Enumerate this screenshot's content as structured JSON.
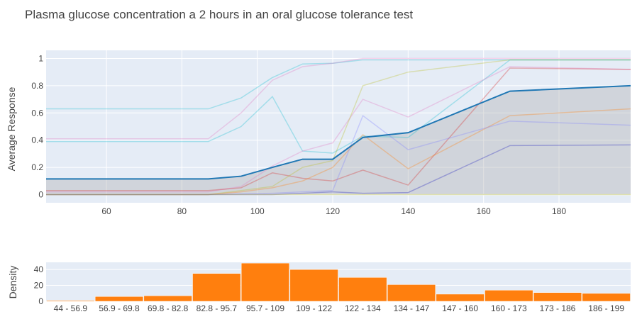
{
  "title": "Plasma glucose concentration a 2 hours in an oral glucose tolerance test",
  "chart_data": [
    {
      "type": "line",
      "ylabel": "Average Response",
      "xlim": [
        44,
        199
      ],
      "ylim": [
        -0.06,
        1.06
      ],
      "x_ticks": [
        60,
        80,
        100,
        120,
        140,
        160,
        180
      ],
      "y_ticks": [
        0,
        0.2,
        0.4,
        0.6,
        0.8,
        1
      ],
      "grid": true,
      "background": "#e5ecf6",
      "x": [
        44,
        56.9,
        69.8,
        82.8,
        87,
        95.7,
        104,
        112,
        120,
        128,
        140,
        167,
        199
      ],
      "band": {
        "color": "#a9a9a9",
        "upper": [
          0.115,
          0.115,
          0.115,
          0.115,
          0.115,
          0.135,
          0.2,
          0.26,
          0.26,
          0.42,
          0.455,
          0.76,
          0.8
        ],
        "lower": [
          0,
          0,
          0,
          0,
          0,
          0,
          0,
          0,
          0,
          0,
          0,
          0,
          0
        ]
      },
      "mean": {
        "color": "#1f77b4",
        "values": [
          0.115,
          0.115,
          0.115,
          0.115,
          0.115,
          0.135,
          0.2,
          0.26,
          0.26,
          0.42,
          0.455,
          0.76,
          0.8
        ]
      },
      "series": [
        {
          "color": "#17becf",
          "values": [
            0.63,
            0.63,
            0.63,
            0.63,
            0.63,
            0.71,
            0.86,
            0.96,
            0.965,
            0.99,
            0.99,
            0.99,
            0.99
          ]
        },
        {
          "color": "#e377c2",
          "values": [
            0.41,
            0.41,
            0.41,
            0.41,
            0.41,
            0.6,
            0.84,
            0.94,
            0.965,
            1.0,
            1.0,
            1.0,
            1.0
          ]
        },
        {
          "color": "#17becf",
          "values": [
            0.39,
            0.39,
            0.39,
            0.39,
            0.39,
            0.5,
            0.72,
            0.32,
            0.305,
            0.43,
            0.42,
            0.99,
            0.99
          ]
        },
        {
          "color": "#e377c2",
          "values": [
            0.02,
            0.02,
            0.02,
            0.02,
            0.02,
            0.06,
            0.21,
            0.32,
            0.38,
            0.7,
            0.57,
            0.94,
            0.92
          ]
        },
        {
          "color": "#d62728",
          "values": [
            0.03,
            0.03,
            0.03,
            0.03,
            0.03,
            0.05,
            0.16,
            0.12,
            0.1,
            0.18,
            0.07,
            0.93,
            0.92
          ]
        },
        {
          "color": "#bcbd22",
          "values": [
            0.0,
            0.0,
            0.0,
            0.0,
            0.0,
            0.03,
            0.06,
            0.2,
            0.25,
            0.8,
            0.9,
            0.99,
            0.99
          ]
        },
        {
          "color": "#ff7f0e",
          "values": [
            0.0,
            0.0,
            0.0,
            0.0,
            0.0,
            0.02,
            0.05,
            0.1,
            0.2,
            0.44,
            0.19,
            0.58,
            0.63
          ]
        },
        {
          "color": "#7f7fff",
          "values": [
            0.0,
            0.0,
            0.0,
            0.0,
            0.0,
            0.005,
            0.01,
            0.02,
            0.03,
            0.58,
            0.33,
            0.54,
            0.51
          ]
        },
        {
          "color": "#1f1fbf",
          "values": [
            0.0,
            0.0,
            0.0,
            0.0,
            0.0,
            0.0,
            0.0,
            0.01,
            0.02,
            0.01,
            0.015,
            0.36,
            0.365
          ]
        },
        {
          "color": "#bcbd22",
          "values": [
            0.0,
            0.0,
            0.0,
            0.0,
            0.0,
            0.0,
            0.0,
            0.0,
            0.0,
            0.0,
            0.0,
            0.0,
            0.0
          ]
        }
      ]
    },
    {
      "type": "bar",
      "ylabel": "Density",
      "ylim": [
        0,
        49
      ],
      "y_ticks": [
        0,
        20,
        40
      ],
      "bar_color": "#ff7f0e",
      "categories": [
        "44 - 56.9",
        "56.9 - 69.8",
        "69.8 - 82.8",
        "82.8 - 95.7",
        "95.7 - 109",
        "109 - 122",
        "122 - 134",
        "134 - 147",
        "147 - 160",
        "160 - 173",
        "173 - 186",
        "186 - 199"
      ],
      "values": [
        1,
        6,
        7,
        35,
        48,
        40,
        30,
        21,
        9,
        14,
        11,
        10
      ]
    }
  ]
}
